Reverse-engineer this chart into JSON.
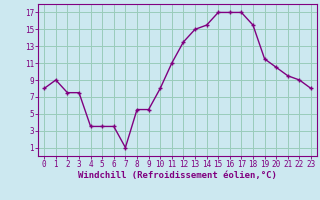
{
  "x": [
    0,
    1,
    2,
    3,
    4,
    5,
    6,
    7,
    8,
    9,
    10,
    11,
    12,
    13,
    14,
    15,
    16,
    17,
    18,
    19,
    20,
    21,
    22,
    23
  ],
  "y": [
    8,
    9,
    7.5,
    7.5,
    3.5,
    3.5,
    3.5,
    1,
    5.5,
    5.5,
    8,
    11,
    13.5,
    15,
    15.5,
    17,
    17,
    17,
    15.5,
    11.5,
    10.5,
    9.5,
    9,
    8
  ],
  "line_color": "#800080",
  "marker": "+",
  "bg_color": "#cce8f0",
  "grid_color": "#99ccbb",
  "xlabel": "Windchill (Refroidissement éolien,°C)",
  "xlabel_color": "#800080",
  "tick_color": "#800080",
  "ylim": [
    0,
    18
  ],
  "xlim": [
    -0.5,
    23.5
  ],
  "yticks": [
    1,
    3,
    5,
    7,
    9,
    11,
    13,
    15,
    17
  ],
  "xticks": [
    0,
    1,
    2,
    3,
    4,
    5,
    6,
    7,
    8,
    9,
    10,
    11,
    12,
    13,
    14,
    15,
    16,
    17,
    18,
    19,
    20,
    21,
    22,
    23
  ],
  "xtick_labels": [
    "0",
    "1",
    "2",
    "3",
    "4",
    "5",
    "6",
    "7",
    "8",
    "9",
    "10",
    "11",
    "12",
    "13",
    "14",
    "15",
    "16",
    "17",
    "18",
    "19",
    "20",
    "21",
    "22",
    "23"
  ],
  "tick_fontsize": 5.5,
  "xlabel_fontsize": 6.5,
  "line_width": 1.0,
  "marker_size": 3.5,
  "marker_ew": 1.0
}
